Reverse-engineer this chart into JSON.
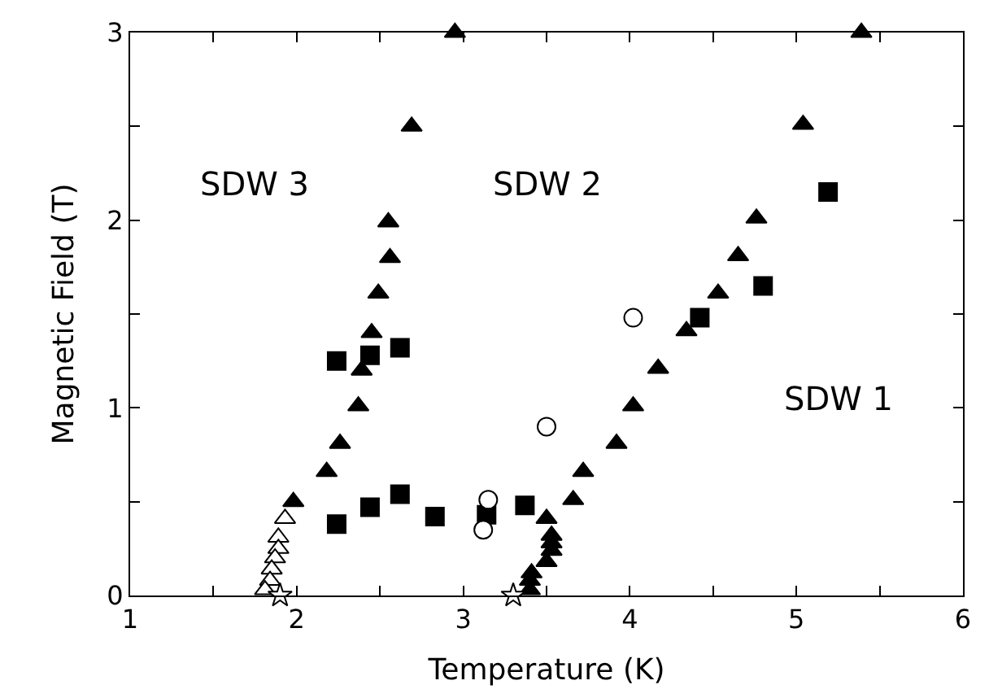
{
  "chart_data": {
    "type": "scatter",
    "xlabel": "Temperature (K)",
    "ylabel": "Magnetic Field (T)",
    "xlim": [
      1,
      6
    ],
    "ylim": [
      0,
      3
    ],
    "xticks": [
      1,
      {
        "value": 1.5,
        "label": null
      },
      2,
      {
        "value": 2.5,
        "label": null
      },
      3,
      {
        "value": 3.5,
        "label": null
      },
      4,
      {
        "value": 4.5,
        "label": null
      },
      5,
      {
        "value": 5.5,
        "label": null
      },
      6
    ],
    "yticks": [
      0,
      {
        "value": 0.5,
        "label": null
      },
      1,
      {
        "value": 1.5,
        "label": null
      },
      2,
      {
        "value": 2.5,
        "label": null
      },
      3
    ],
    "annotations": [
      "SDW 3",
      "SDW 2",
      "SDW 1"
    ],
    "series": [
      {
        "marker": "triangle",
        "color": "#000000",
        "x": [
          1.98,
          2.18,
          2.26,
          2.37,
          2.39,
          2.45,
          2.49,
          2.56,
          2.55,
          2.69,
          2.95,
          3.4,
          3.4,
          3.41,
          3.5,
          3.53,
          3.53,
          3.53,
          3.5,
          3.66,
          3.72,
          3.92,
          4.02,
          4.17,
          4.34,
          4.53,
          4.65,
          4.76,
          5.04,
          5.39
        ],
        "values": [
          0.5,
          0.66,
          0.81,
          1.01,
          1.2,
          1.4,
          1.61,
          1.8,
          1.99,
          2.5,
          3.0,
          0.03,
          0.08,
          0.12,
          0.18,
          0.24,
          0.28,
          0.32,
          0.41,
          0.51,
          0.66,
          0.81,
          1.01,
          1.21,
          1.41,
          1.61,
          1.81,
          2.01,
          2.51,
          3.0
        ]
      },
      {
        "marker": "square",
        "color": "#000000",
        "x": [
          2.24,
          2.44,
          2.62,
          2.24,
          2.44,
          2.62,
          2.83,
          3.14,
          3.37,
          4.42,
          4.8,
          5.19
        ],
        "values": [
          1.25,
          1.28,
          1.32,
          0.38,
          0.47,
          0.54,
          0.42,
          0.43,
          0.48,
          1.48,
          1.65,
          2.15
        ]
      },
      {
        "marker": "circle",
        "color": "#ffffff",
        "x": [
          3.15,
          3.12,
          3.5,
          4.02
        ],
        "values": [
          0.51,
          0.35,
          0.9,
          1.48
        ]
      },
      {
        "marker": "triangle",
        "color": "#ffffff",
        "x": [
          1.93,
          1.89,
          1.89,
          1.87,
          1.85,
          1.84,
          1.81
        ],
        "values": [
          0.41,
          0.31,
          0.25,
          0.2,
          0.14,
          0.08,
          0.03
        ]
      },
      {
        "marker": "star",
        "color": "#ffffff",
        "x": [
          1.9,
          3.3
        ],
        "values": [
          0.0,
          0.0
        ]
      }
    ]
  }
}
